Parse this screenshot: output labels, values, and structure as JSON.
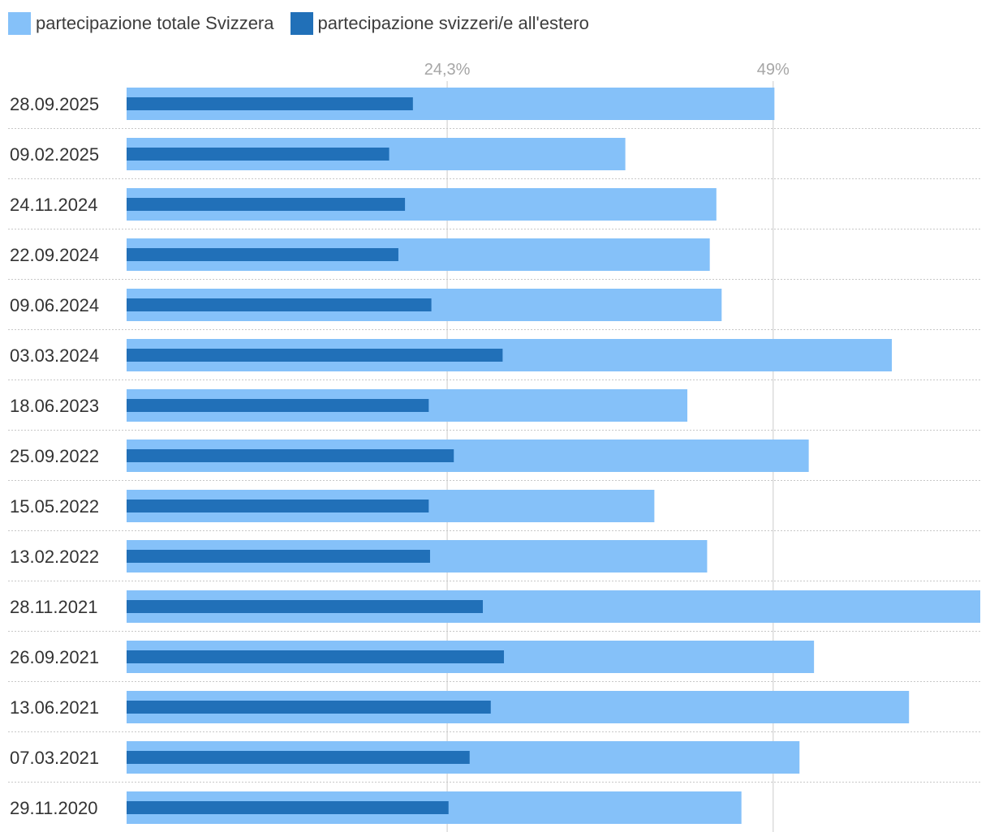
{
  "legend": [
    {
      "label": "partecipazione totale Svizzera",
      "color": "#85c1f9"
    },
    {
      "label": "partecipazione svizzeri/e all'estero",
      "color": "#2170b8"
    }
  ],
  "chart_data": {
    "type": "bar",
    "orientation": "horizontal",
    "title": "",
    "xlim": [
      0,
      64.7
    ],
    "gridlines": [
      {
        "value": 24.3,
        "label": "24,3%"
      },
      {
        "value": 49,
        "label": "49%"
      }
    ],
    "categories": [
      "28.09.2025",
      "09.02.2025",
      "24.11.2024",
      "22.09.2024",
      "09.06.2024",
      "03.03.2024",
      "18.06.2023",
      "25.09.2022",
      "15.05.2022",
      "13.02.2022",
      "28.11.2021",
      "26.09.2021",
      "13.06.2021",
      "07.03.2021",
      "29.11.2020"
    ],
    "highlight_category": "28.09.2025",
    "series": [
      {
        "name": "partecipazione totale Svizzera",
        "color": "#85c1f9",
        "values": [
          49.1,
          37.8,
          44.7,
          44.2,
          45.1,
          58.0,
          42.5,
          51.7,
          40.0,
          44.0,
          64.7,
          52.1,
          59.3,
          51.0,
          46.6
        ]
      },
      {
        "name": "partecipazione svizzeri/e all'estero",
        "color": "#2170b8",
        "values": [
          21.7,
          19.9,
          21.1,
          20.6,
          23.1,
          28.5,
          22.9,
          24.8,
          22.9,
          23.0,
          27.0,
          28.6,
          27.6,
          26.0,
          24.4
        ]
      }
    ]
  }
}
